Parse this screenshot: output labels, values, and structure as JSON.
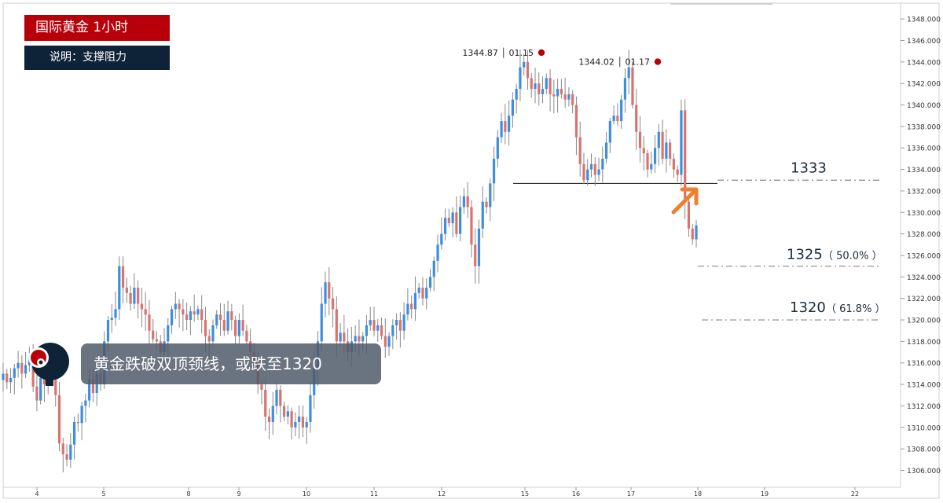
{
  "header": {
    "title": "国际黄金  1小时",
    "subtitle": "说明：支撑阻力"
  },
  "banner": {
    "text": "黄金跌破双顶颈线，或跌至1320"
  },
  "colors": {
    "up": "#3b8ee0",
    "down": "#d9736d",
    "title_bg": "#b8000a",
    "subtitle_bg": "#0f2338",
    "marker": "#b8000a",
    "arrow": "#f07f2e",
    "dash": "#888888"
  },
  "chart_data": {
    "type": "candlestick",
    "title": "国际黄金  1小时",
    "ylim": [
      1304.5,
      1349.4
    ],
    "yticks": [
      "1306.000",
      "1308.000",
      "1310.000",
      "1312.000",
      "1314.000",
      "1316.000",
      "1318.000",
      "1320.000",
      "1322.000",
      "1324.000",
      "1326.000",
      "1328.000",
      "1330.000",
      "1332.000",
      "1334.000",
      "1336.000",
      "1338.000",
      "1340.000",
      "1342.000",
      "1344.000",
      "1346.000",
      "1348.000"
    ],
    "xticks": [
      "4",
      "5",
      "8",
      "9",
      "10",
      "11",
      "12",
      "15",
      "16",
      "17",
      "18",
      "19",
      "22"
    ],
    "levels": [
      {
        "value": 1333,
        "label": "1333",
        "pct": ""
      },
      {
        "value": 1325,
        "label": "1325",
        "pct": "（ 50.0% ）"
      },
      {
        "value": 1320,
        "label": "1320",
        "pct": "（ 61.8% ）"
      }
    ],
    "neckline": 1332.7,
    "peaks": [
      {
        "value": 1344.87,
        "text": "1344.87 │ 01.15"
      },
      {
        "value": 1344.02,
        "text": "1344.02 │ 01.17"
      }
    ],
    "closes": [
      1315.0,
      1314.2,
      1314.6,
      1315.5,
      1316.0,
      1315.0,
      1315.8,
      1316.5,
      1313.8,
      1312.5,
      1314.6,
      1314.0,
      1316.0,
      1315.2,
      1313.0,
      1308.5,
      1307.5,
      1307.0,
      1308.4,
      1310.5,
      1310.4,
      1312.0,
      1312.5,
      1314.5,
      1313.2,
      1315.0,
      1314.0,
      1318.0,
      1320.0,
      1320.2,
      1321.0,
      1325.0,
      1323.0,
      1322.5,
      1321.5,
      1323.0,
      1321.5,
      1321.0,
      1320.5,
      1319.0,
      1318.2,
      1318.0,
      1317.0,
      1318.0,
      1319.5,
      1321.0,
      1321.5,
      1321.0,
      1320.5,
      1320.0,
      1320.8,
      1320.5,
      1321.0,
      1320.0,
      1318.5,
      1318.0,
      1319.5,
      1320.5,
      1320.0,
      1319.0,
      1320.8,
      1320.0,
      1318.5,
      1320.0,
      1319.0,
      1318.0,
      1317.0,
      1316.0,
      1314.0,
      1313.5,
      1311.0,
      1310.5,
      1312.0,
      1313.5,
      1312.0,
      1311.0,
      1311.5,
      1310.0,
      1310.5,
      1311.0,
      1310.0,
      1310.5,
      1313.0,
      1315.5,
      1318.0,
      1321.5,
      1323.5,
      1322.0,
      1321.0,
      1318.0,
      1318.8,
      1318.0,
      1317.0,
      1318.0,
      1318.5,
      1318.0,
      1318.5,
      1319.5,
      1320.0,
      1319.0,
      1319.5,
      1318.5,
      1317.5,
      1318.5,
      1319.5,
      1320.0,
      1319.0,
      1320.5,
      1321.5,
      1321.0,
      1322.5,
      1323.0,
      1322.0,
      1323.0,
      1324.0,
      1325.5,
      1327.0,
      1328.0,
      1329.5,
      1329.0,
      1330.0,
      1328.0,
      1330.5,
      1331.5,
      1330.5,
      1327.0,
      1325.0,
      1328.5,
      1331.0,
      1330.5,
      1332.7,
      1335.0,
      1337.0,
      1338.5,
      1337.5,
      1339.0,
      1340.5,
      1341.5,
      1343.5,
      1344.0,
      1342.5,
      1341.5,
      1342.0,
      1341.0,
      1341.5,
      1342.5,
      1341.0,
      1340.8,
      1341.5,
      1341.0,
      1340.5,
      1341.0,
      1340.0,
      1337.0,
      1334.5,
      1333.0,
      1334.0,
      1334.5,
      1333.5,
      1334.0,
      1335.0,
      1336.5,
      1338.5,
      1339.0,
      1338.5,
      1340.5,
      1342.5,
      1343.5,
      1340.0,
      1337.5,
      1336.0,
      1335.5,
      1334.0,
      1334.5,
      1336.0,
      1337.5,
      1335.0,
      1336.5,
      1335.0,
      1334.0,
      1333.5,
      1339.5,
      1331.0,
      1328.5,
      1327.5,
      1328.8
    ]
  }
}
